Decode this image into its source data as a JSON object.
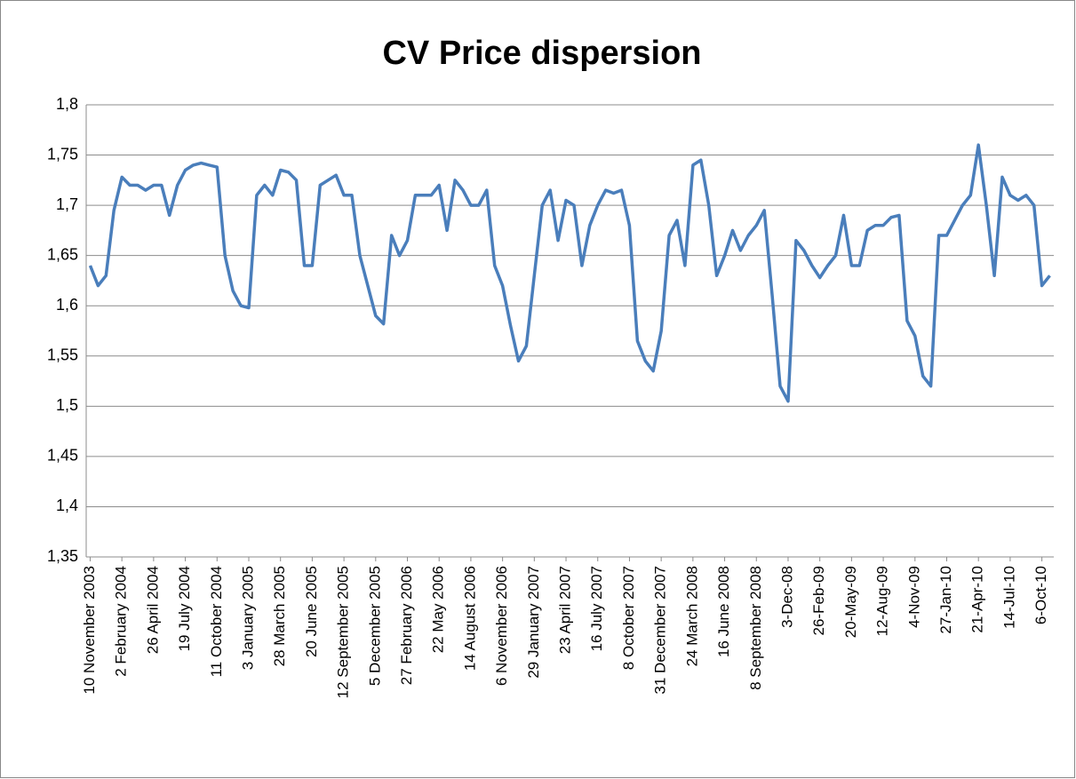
{
  "chart_data": {
    "type": "line",
    "title": "CV Price dispersion",
    "categories": [
      "10 November 2003",
      null,
      null,
      null,
      "2 February 2004",
      null,
      null,
      null,
      "26 April 2004",
      null,
      null,
      null,
      "19 July 2004",
      null,
      null,
      null,
      "11 October 2004",
      null,
      null,
      null,
      "3 January 2005",
      null,
      null,
      null,
      "28 March 2005",
      null,
      null,
      null,
      "20 June 2005",
      null,
      null,
      null,
      "12 September 2005",
      null,
      null,
      null,
      "5 December 2005",
      null,
      null,
      null,
      "27 February 2006",
      null,
      null,
      null,
      "22 May 2006",
      null,
      null,
      null,
      "14 August 2006",
      null,
      null,
      null,
      "6 November 2006",
      null,
      null,
      null,
      "29 January 2007",
      null,
      null,
      null,
      "23 April 2007",
      null,
      null,
      null,
      "16 July 2007",
      null,
      null,
      null,
      "8 October 2007",
      null,
      null,
      null,
      "31 December 2007",
      null,
      null,
      null,
      "24 March 2008",
      null,
      null,
      null,
      "16 June 2008",
      null,
      null,
      null,
      "8 September 2008",
      null,
      null,
      null,
      "3-Dec-08",
      null,
      null,
      null,
      "26-Feb-09",
      null,
      null,
      null,
      "20-May-09",
      null,
      null,
      null,
      "12-Aug-09",
      null,
      null,
      null,
      "4-Nov-09",
      null,
      null,
      null,
      "27-Jan-10",
      null,
      null,
      null,
      "21-Apr-10",
      null,
      null,
      null,
      "14-Jul-10",
      null,
      null,
      null,
      "6-Oct-10",
      null
    ],
    "values": [
      1.64,
      1.62,
      1.63,
      1.695,
      1.728,
      1.72,
      1.72,
      1.715,
      1.72,
      1.72,
      1.69,
      1.72,
      1.735,
      1.74,
      1.742,
      1.74,
      1.738,
      1.65,
      1.615,
      1.6,
      1.598,
      1.71,
      1.72,
      1.71,
      1.735,
      1.733,
      1.725,
      1.64,
      1.64,
      1.72,
      1.725,
      1.73,
      1.71,
      1.71,
      1.65,
      1.62,
      1.59,
      1.582,
      1.67,
      1.65,
      1.665,
      1.71,
      1.71,
      1.71,
      1.72,
      1.675,
      1.725,
      1.715,
      1.7,
      1.7,
      1.715,
      1.64,
      1.62,
      1.58,
      1.545,
      1.56,
      1.63,
      1.7,
      1.715,
      1.665,
      1.705,
      1.7,
      1.64,
      1.68,
      1.7,
      1.715,
      1.712,
      1.715,
      1.68,
      1.565,
      1.545,
      1.535,
      1.575,
      1.67,
      1.685,
      1.64,
      1.74,
      1.745,
      1.7,
      1.63,
      1.65,
      1.675,
      1.655,
      1.67,
      1.68,
      1.695,
      1.61,
      1.52,
      1.505,
      1.665,
      1.655,
      1.64,
      1.628,
      1.64,
      1.65,
      1.69,
      1.64,
      1.64,
      1.675,
      1.68,
      1.68,
      1.688,
      1.69,
      1.585,
      1.57,
      1.53,
      1.52,
      1.67,
      1.67,
      1.685,
      1.7,
      1.71,
      1.76,
      1.7,
      1.63,
      1.728,
      1.71,
      1.705,
      1.71,
      1.7,
      1.62,
      1.63
    ],
    "color": "#4a7ebb",
    "ylim": [
      1.35,
      1.8
    ],
    "yticks": [
      {
        "value": 1.35,
        "label": "1,35"
      },
      {
        "value": 1.4,
        "label": "1,4"
      },
      {
        "value": 1.45,
        "label": "1,45"
      },
      {
        "value": 1.5,
        "label": "1,5"
      },
      {
        "value": 1.55,
        "label": "1,55"
      },
      {
        "value": 1.6,
        "label": "1,6"
      },
      {
        "value": 1.65,
        "label": "1,65"
      },
      {
        "value": 1.7,
        "label": "1,7"
      },
      {
        "value": 1.75,
        "label": "1,75"
      },
      {
        "value": 1.8,
        "label": "1,8"
      }
    ],
    "grid": true
  }
}
